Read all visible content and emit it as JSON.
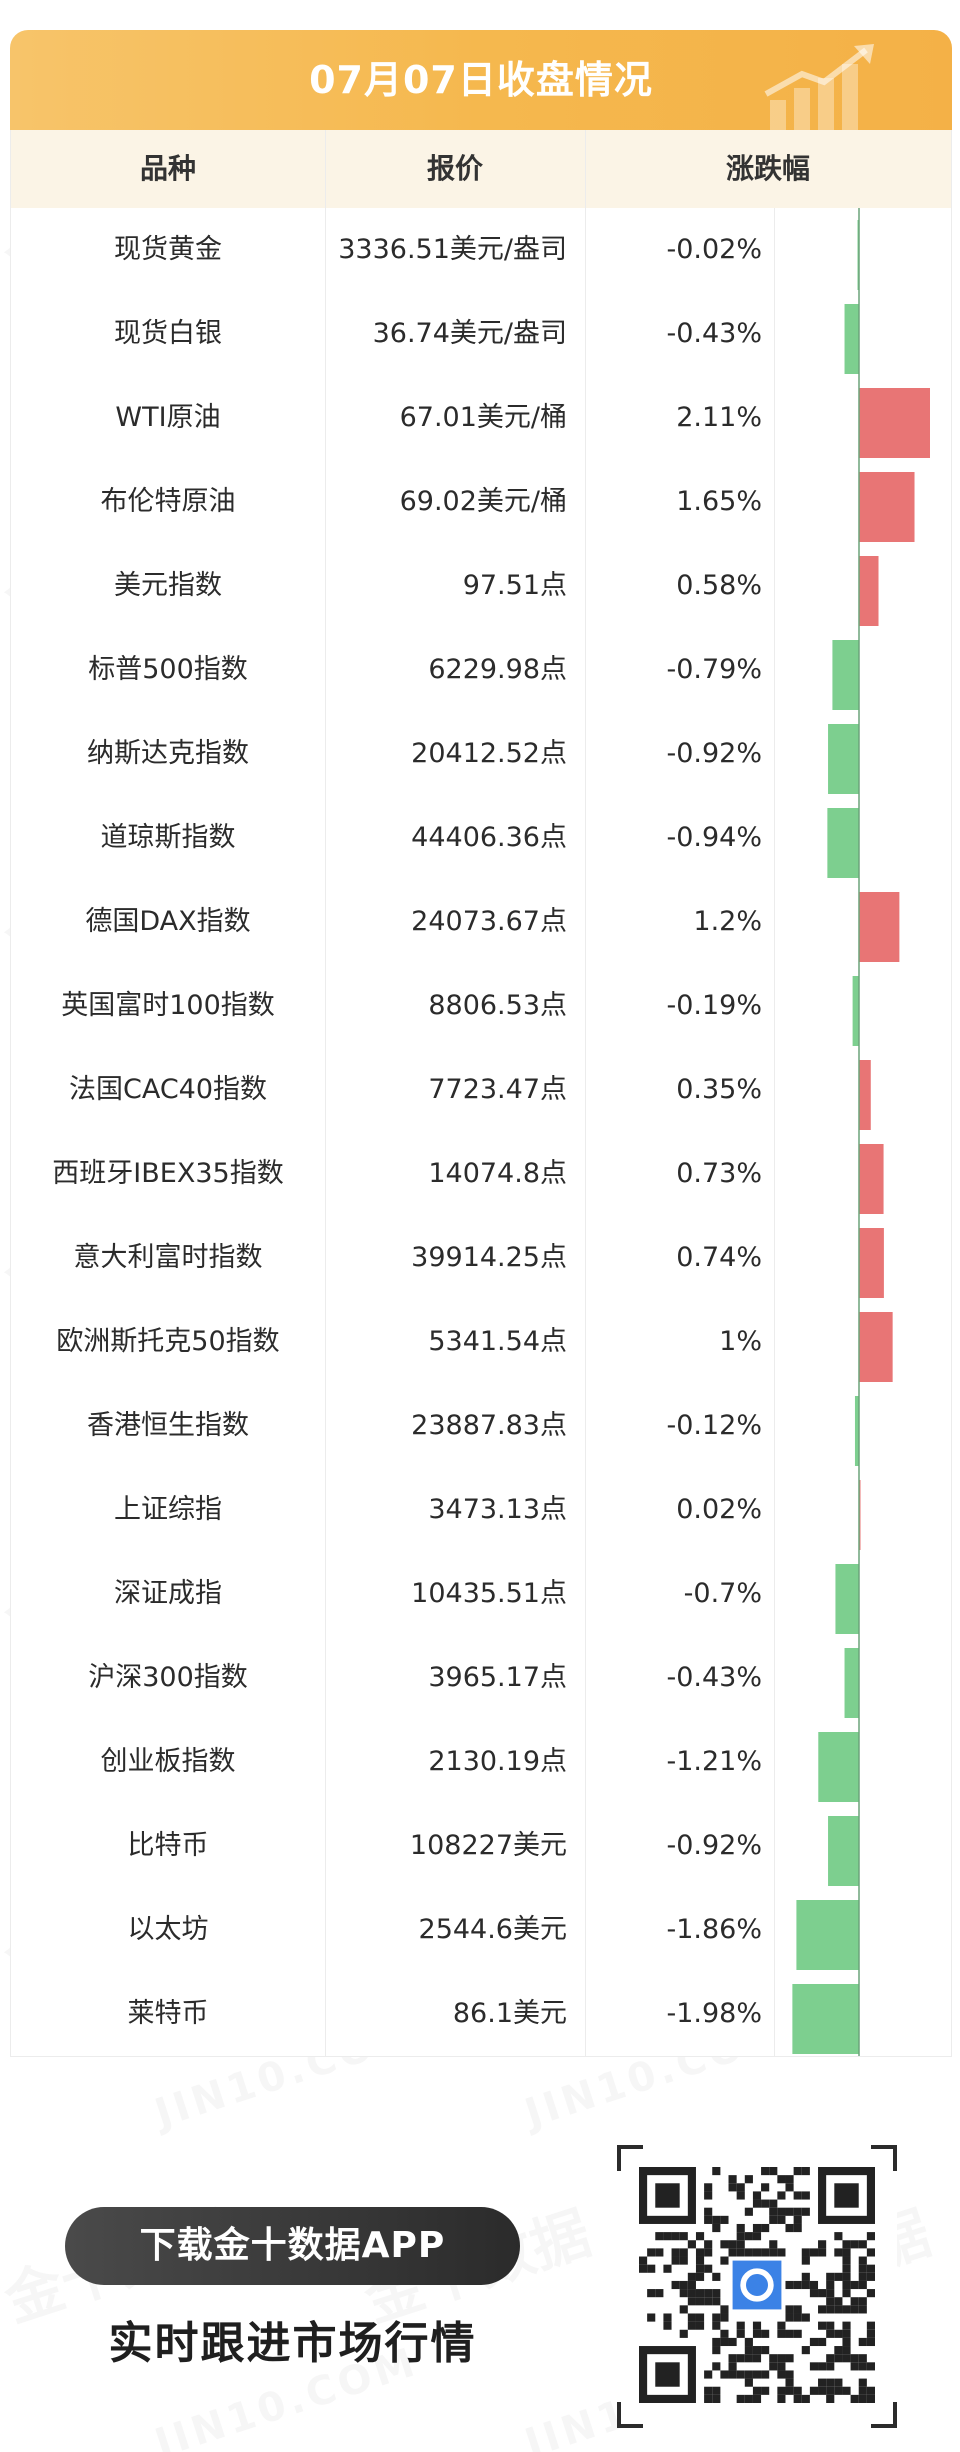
{
  "header": {
    "title": "07月07日收盘情况"
  },
  "table": {
    "columns": [
      "品种",
      "报价",
      "涨跌幅"
    ]
  },
  "colors": {
    "up": "#e87575",
    "down": "#7dcf8f",
    "header_bg": "#f5b84e",
    "axis": "#6ba37a"
  },
  "chart_data": {
    "type": "table",
    "columns": [
      "品种",
      "报价",
      "涨跌幅"
    ],
    "rows": [
      {
        "name": "现货黄金",
        "price": "3336.51美元/盎司",
        "change": -0.02,
        "change_label": "-0.02%"
      },
      {
        "name": "现货白银",
        "price": "36.74美元/盎司",
        "change": -0.43,
        "change_label": "-0.43%"
      },
      {
        "name": "WTI原油",
        "price": "67.01美元/桶",
        "change": 2.11,
        "change_label": "2.11%"
      },
      {
        "name": "布伦特原油",
        "price": "69.02美元/桶",
        "change": 1.65,
        "change_label": "1.65%"
      },
      {
        "name": "美元指数",
        "price": "97.51点",
        "change": 0.58,
        "change_label": "0.58%"
      },
      {
        "name": "标普500指数",
        "price": "6229.98点",
        "change": -0.79,
        "change_label": "-0.79%"
      },
      {
        "name": "纳斯达克指数",
        "price": "20412.52点",
        "change": -0.92,
        "change_label": "-0.92%"
      },
      {
        "name": "道琼斯指数",
        "price": "44406.36点",
        "change": -0.94,
        "change_label": "-0.94%"
      },
      {
        "name": "德国DAX指数",
        "price": "24073.67点",
        "change": 1.2,
        "change_label": "1.2%"
      },
      {
        "name": "英国富时100指数",
        "price": "8806.53点",
        "change": -0.19,
        "change_label": "-0.19%"
      },
      {
        "name": "法国CAC40指数",
        "price": "7723.47点",
        "change": 0.35,
        "change_label": "0.35%"
      },
      {
        "name": "西班牙IBEX35指数",
        "price": "14074.8点",
        "change": 0.73,
        "change_label": "0.73%"
      },
      {
        "name": "意大利富时指数",
        "price": "39914.25点",
        "change": 0.74,
        "change_label": "0.74%"
      },
      {
        "name": "欧洲斯托克50指数",
        "price": "5341.54点",
        "change": 1.0,
        "change_label": "1%"
      },
      {
        "name": "香港恒生指数",
        "price": "23887.83点",
        "change": -0.12,
        "change_label": "-0.12%"
      },
      {
        "name": "上证综指",
        "price": "3473.13点",
        "change": 0.02,
        "change_label": "0.02%"
      },
      {
        "name": "深证成指",
        "price": "10435.51点",
        "change": -0.7,
        "change_label": "-0.7%"
      },
      {
        "name": "沪深300指数",
        "price": "3965.17点",
        "change": -0.43,
        "change_label": "-0.43%"
      },
      {
        "name": "创业板指数",
        "price": "2130.19点",
        "change": -1.21,
        "change_label": "-1.21%"
      },
      {
        "name": "比特币",
        "price": "108227美元",
        "change": -0.92,
        "change_label": "-0.92%"
      },
      {
        "name": "以太坊",
        "price": "2544.6美元",
        "change": -1.86,
        "change_label": "-1.86%"
      },
      {
        "name": "莱特币",
        "price": "86.1美元",
        "change": -1.98,
        "change_label": "-1.98%"
      }
    ]
  },
  "footer": {
    "download_label": "下载金十数据APP",
    "tagline": "实时跟进市场行情",
    "qr_center_icon": "jin10-logo-icon"
  },
  "watermark": {
    "text_cn": "金十数据",
    "text_en": "JIN10.COM"
  }
}
